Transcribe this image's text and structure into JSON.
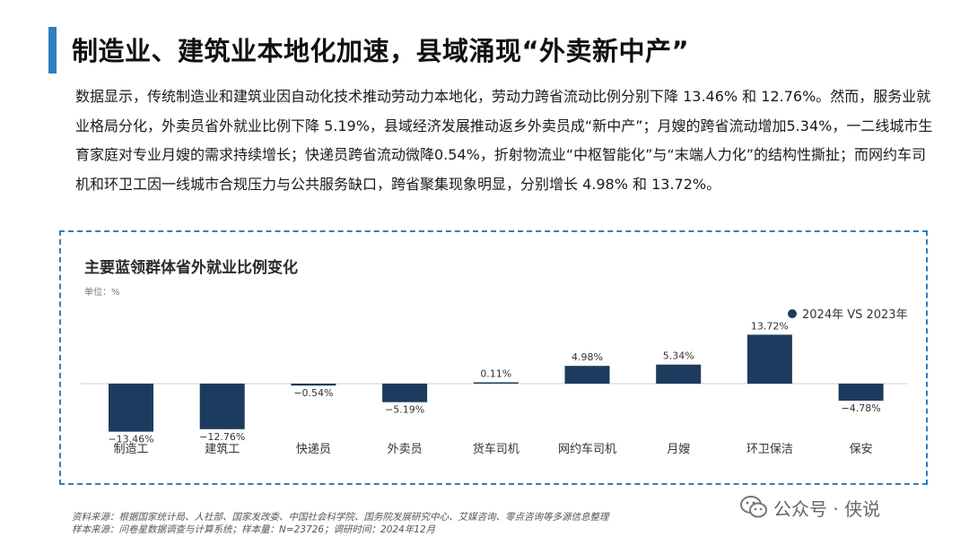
{
  "headline": "制造业、建筑业本地化加速，县域涌现“外卖新中产”",
  "paragraph": "数据显示，传统制造业和建筑业因自动化技术推动劳动力本地化，劳动力跨省流动比例分别下降 13.46% 和 12.76%。然而，服务业就业格局分化，外卖员省外就业比例下降 5.19%，县域经济发展推动返乡外卖员成“新中产”；月嫂的跨省流动增加5.34%，一二线城市生育家庭对专业月嫂的需求持续增长；快递员跨省流动微降0.54%，折射物流业“中枢智能化”与“末端人力化”的结构性撕扯；而网约车司机和环卫工因一线城市合规压力与公共服务缺口，跨省聚集现象明显，分别增长 4.98% 和 13.72%。",
  "chart_data": {
    "type": "bar",
    "title": "主要蓝领群体省外就业比例变化",
    "unit_label": "单位：%",
    "legend": "2024年 VS 2023年",
    "legend_position": "top-right",
    "categories": [
      "制造工",
      "建筑工",
      "快递员",
      "外卖员",
      "货车司机",
      "网约车司机",
      "月嫂",
      "环卫保洁",
      "保安"
    ],
    "values": [
      -13.46,
      -12.76,
      -0.54,
      -5.19,
      0.11,
      4.98,
      5.34,
      13.72,
      -4.78
    ],
    "value_labels": [
      "−13.46%",
      "−12.76%",
      "−0.54%",
      "−5.19%",
      "0.11%",
      "4.98%",
      "5.34%",
      "13.72%",
      "−4.78%"
    ],
    "ylim": [
      -14,
      15
    ],
    "grid": false,
    "bar_color": "#1d3b5e"
  },
  "footer": {
    "line1": "资料来源：根据国家统计局、人社部、国家发改委、中国社会科学院、国务院发展研究中心、艾媒咨询、零点咨询等多源信息整理",
    "line2": "样本来源：问卷星数据调查与计算系统；样本量：N=23726；调研时间：2024年12月"
  },
  "watermark": {
    "text": "公众号 · 侠说",
    "icon": "wechat-icon"
  }
}
